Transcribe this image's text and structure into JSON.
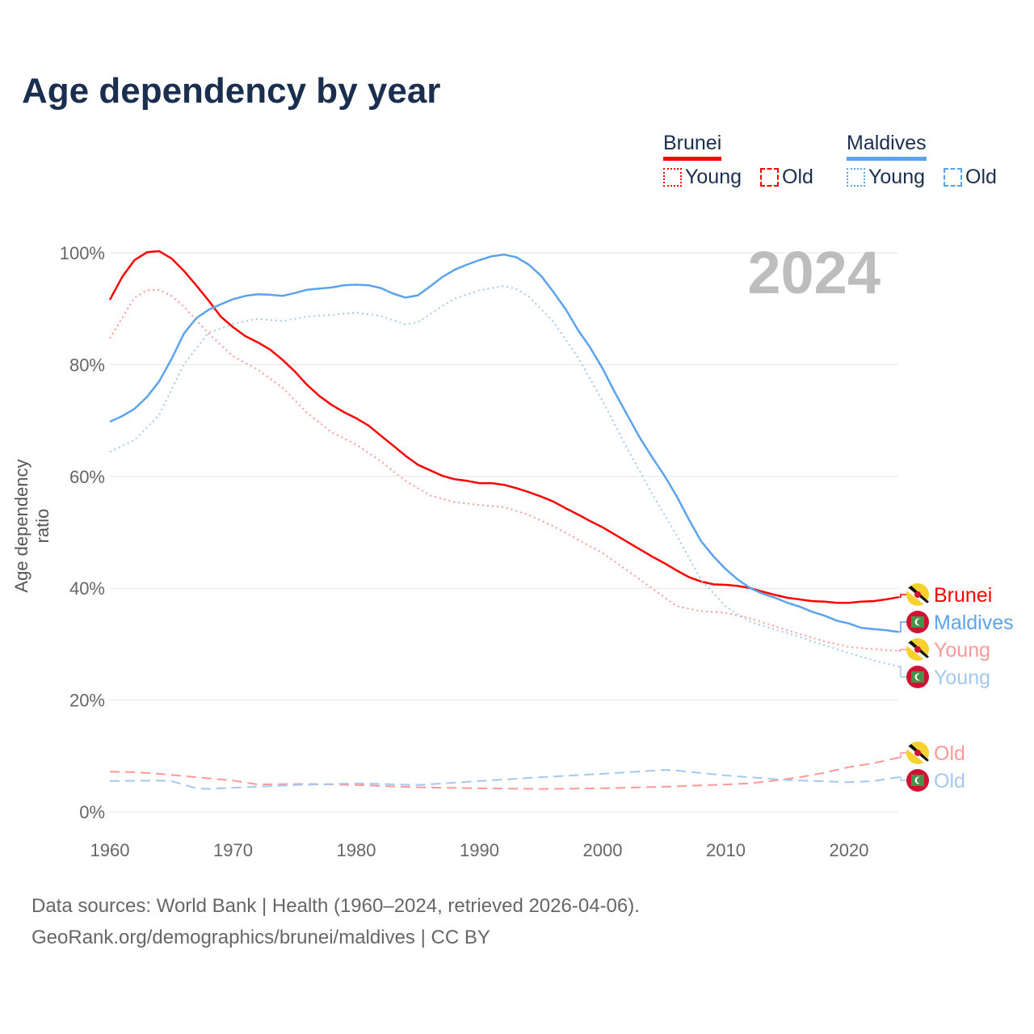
{
  "chart_data": {
    "type": "line",
    "title": "Age dependency by year",
    "ylabel": "Age dependency ratio",
    "xlabel": "",
    "xlim": [
      1960,
      2024
    ],
    "ylim": [
      0,
      100
    ],
    "x_ticks": [
      "1960",
      "1970",
      "1980",
      "1990",
      "2000",
      "2010",
      "2020"
    ],
    "y_ticks": [
      "0%",
      "20%",
      "40%",
      "60%",
      "80%",
      "100%"
    ],
    "year_label": "2024",
    "grid": true,
    "legend": {
      "placement": "top-right",
      "groups": [
        {
          "country": "Brunei",
          "color": "#ff0000",
          "items": [
            "Young",
            "Old"
          ]
        },
        {
          "country": "Maldives",
          "color": "#5ba3ec",
          "items": [
            "Young",
            "Old"
          ]
        }
      ]
    },
    "series": [
      {
        "name": "Brunei",
        "label": "Brunei",
        "style": "solid",
        "color": "#ff0000",
        "x": [
          1960,
          1961,
          1962,
          1963,
          1964,
          1965,
          1966,
          1967,
          1968,
          1969,
          1970,
          1971,
          1972,
          1973,
          1974,
          1975,
          1976,
          1977,
          1978,
          1979,
          1980,
          1981,
          1982,
          1983,
          1984,
          1985,
          1986,
          1987,
          1988,
          1989,
          1990,
          1991,
          1992,
          1993,
          1994,
          1995,
          1996,
          1997,
          1998,
          1999,
          2000,
          2001,
          2002,
          2003,
          2004,
          2005,
          2006,
          2007,
          2008,
          2009,
          2010,
          2011,
          2012,
          2013,
          2014,
          2015,
          2016,
          2017,
          2018,
          2019,
          2020,
          2021,
          2022,
          2023,
          2024
        ],
        "y": [
          91.6,
          95.7,
          98.7,
          100.1,
          100.3,
          99,
          96.8,
          94.2,
          91.5,
          88.6,
          86.7,
          85.1,
          84,
          82.7,
          80.9,
          78.8,
          76.4,
          74.4,
          72.8,
          71.5,
          70.4,
          69.1,
          67.3,
          65.5,
          63.7,
          62.1,
          61.1,
          60.1,
          59.5,
          59.2,
          58.8,
          58.8,
          58.5,
          57.9,
          57.2,
          56.4,
          55.5,
          54.3,
          53.2,
          52,
          50.9,
          49.6,
          48.3,
          47,
          45.7,
          44.5,
          43.2,
          42,
          41.2,
          40.7,
          40.6,
          40.4,
          40,
          39.4,
          38.8,
          38.3,
          38,
          37.7,
          37.6,
          37.4,
          37.4,
          37.6,
          37.7,
          38,
          38.4
        ]
      },
      {
        "name": "Brunei Young",
        "label": "Young",
        "style": "dotted",
        "color": "#ff9999",
        "x": [
          1960,
          1962,
          1963,
          1964,
          1965,
          1966,
          1968,
          1970,
          1972,
          1974,
          1976,
          1978,
          1980,
          1982,
          1984,
          1986,
          1988,
          1990,
          1992,
          1994,
          1996,
          1998,
          2000,
          2002,
          2004,
          2006,
          2008,
          2010,
          2012,
          2014,
          2016,
          2018,
          2020,
          2022,
          2024
        ],
        "y": [
          84.7,
          92,
          93.3,
          93.4,
          92.3,
          90.4,
          85.6,
          81.5,
          79.1,
          75.9,
          71.4,
          67.9,
          65.7,
          62.7,
          59.2,
          56.6,
          55.4,
          54.9,
          54.5,
          53.1,
          51.1,
          48.7,
          46.3,
          43.2,
          40,
          36.8,
          35.9,
          35.6,
          34.6,
          33.2,
          31.8,
          30.5,
          29.5,
          29.1,
          28.8
        ]
      },
      {
        "name": "Brunei Old",
        "label": "Old",
        "style": "dashed",
        "color": "#ff9999",
        "x": [
          1960,
          1962,
          1964,
          1966,
          1968,
          1970,
          1972,
          1976,
          1980,
          1985,
          1990,
          1995,
          2000,
          2005,
          2010,
          2012,
          2014,
          2016,
          2018,
          2020,
          2022,
          2024
        ],
        "y": [
          7.2,
          7.1,
          6.8,
          6.4,
          6,
          5.6,
          4.9,
          5,
          4.8,
          4.4,
          4.2,
          4.1,
          4.2,
          4.5,
          4.9,
          5.1,
          5.6,
          6.2,
          7,
          8,
          8.7,
          9.7
        ]
      },
      {
        "name": "Maldives",
        "label": "Maldives",
        "style": "solid",
        "color": "#5ba3ec",
        "x": [
          1960,
          1961,
          1962,
          1963,
          1964,
          1965,
          1966,
          1967,
          1968,
          1969,
          1970,
          1971,
          1972,
          1973,
          1974,
          1975,
          1976,
          1977,
          1978,
          1979,
          1980,
          1981,
          1982,
          1983,
          1984,
          1985,
          1986,
          1987,
          1988,
          1989,
          1990,
          1991,
          1992,
          1993,
          1994,
          1995,
          1996,
          1997,
          1998,
          1999,
          2000,
          2001,
          2002,
          2003,
          2004,
          2005,
          2006,
          2007,
          2008,
          2009,
          2010,
          2011,
          2012,
          2013,
          2014,
          2015,
          2016,
          2017,
          2018,
          2019,
          2020,
          2021,
          2022,
          2023,
          2024
        ],
        "y": [
          69.8,
          70.8,
          72.1,
          74.2,
          77,
          81,
          85.5,
          88.3,
          89.8,
          90.8,
          91.7,
          92.3,
          92.6,
          92.5,
          92.3,
          92.8,
          93.4,
          93.6,
          93.8,
          94.2,
          94.3,
          94.2,
          93.7,
          92.7,
          92,
          92.4,
          94,
          95.7,
          97,
          97.9,
          98.7,
          99.4,
          99.7,
          99.2,
          97.9,
          95.9,
          93,
          89.9,
          86.2,
          83,
          79.3,
          75,
          71,
          67,
          63.5,
          60.2,
          56.5,
          52.3,
          48.4,
          45.7,
          43.4,
          41.5,
          40,
          39,
          38.3,
          37.4,
          36.7,
          35.8,
          35.1,
          34.2,
          33.7,
          32.9,
          32.7,
          32.5,
          32.2
        ]
      },
      {
        "name": "Maldives Young",
        "label": "Young",
        "style": "dotted",
        "color": "#a4c8f0",
        "x": [
          1960,
          1962,
          1964,
          1966,
          1968,
          1970,
          1972,
          1974,
          1976,
          1978,
          1980,
          1982,
          1984,
          1985,
          1987,
          1988,
          1990,
          1992,
          1993,
          1994,
          1996,
          1998,
          2000,
          2002,
          2004,
          2006,
          2008,
          2010,
          2012,
          2014,
          2016,
          2018,
          2020,
          2022,
          2024
        ],
        "y": [
          64.4,
          66.5,
          71,
          80,
          85.7,
          87.3,
          88.2,
          87.8,
          88.6,
          88.9,
          89.3,
          88.7,
          87.2,
          87.6,
          90.5,
          91.8,
          93.3,
          94.1,
          93.5,
          92.2,
          87.7,
          81.3,
          73.5,
          65,
          57,
          49.5,
          41.5,
          36.7,
          34,
          32.6,
          31.3,
          29.8,
          28.4,
          27.1,
          26
        ]
      },
      {
        "name": "Maldives Old",
        "label": "Old",
        "style": "dashed",
        "color": "#a4c8f0",
        "x": [
          1960,
          1964,
          1965,
          1967,
          1968,
          1970,
          1975,
          1980,
          1985,
          1990,
          1995,
          2000,
          2005,
          2006,
          2010,
          2015,
          2020,
          2022,
          2024
        ],
        "y": [
          5.5,
          5.6,
          5.5,
          4.2,
          4.1,
          4.3,
          4.8,
          5.1,
          4.8,
          5.5,
          6.2,
          6.8,
          7.5,
          7.4,
          6.5,
          5.7,
          5.3,
          5.5,
          6.2
        ]
      }
    ]
  },
  "footer": {
    "source": "Data sources: World Bank | Health (1960–2024, retrieved 2026-04-06).",
    "link": "GeoRank.org/demographics/brunei/maldives | CC BY"
  }
}
